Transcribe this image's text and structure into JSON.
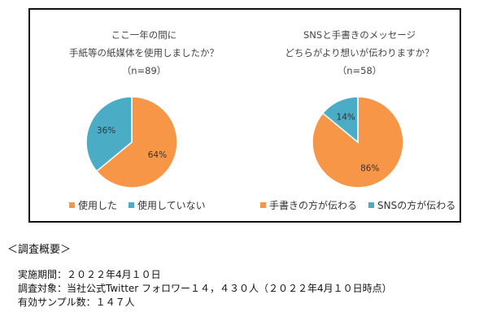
{
  "colors": {
    "orange": "#F79646",
    "blue": "#4BACC6"
  },
  "chart_data": [
    {
      "type": "pie",
      "title_lines": [
        "ここ一年の間に",
        "手紙等の紙媒体を使用しましたか？",
        "（n=89）"
      ],
      "slices": [
        {
          "name": "使用した",
          "value": 64,
          "label": "64%",
          "color": "#F79646"
        },
        {
          "name": "使用していない",
          "value": 36,
          "label": "36%",
          "color": "#4BACC6"
        }
      ],
      "legend": [
        "使用した",
        "使用していない"
      ],
      "legend_position": "bottom"
    },
    {
      "type": "pie",
      "title_lines": [
        "SNSと手書きのメッセージ",
        "どちらがより想いが伝わりますか？",
        "（n=58）"
      ],
      "slices": [
        {
          "name": "手書きの方が伝わる",
          "value": 86,
          "label": "86%",
          "color": "#F79646"
        },
        {
          "name": "SNSの方が伝わる",
          "value": 14,
          "label": "14%",
          "color": "#4BACC6"
        }
      ],
      "legend": [
        "手書きの方が伝わる",
        "SNSの方が伝わる"
      ],
      "legend_position": "bottom"
    }
  ],
  "summary": {
    "heading": "＜調査概要＞",
    "lines": [
      "実施期間：２０２２年4月１０日",
      "調査対象：当社公式Twitter フォロワー１４，４３０人（２０２２年4月１０日時点）",
      "有効サンプル数：１４７人"
    ]
  }
}
